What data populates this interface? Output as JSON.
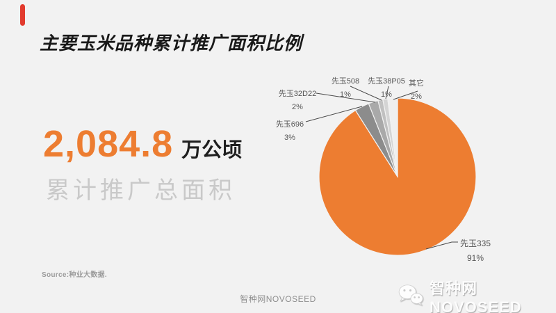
{
  "header": {
    "title": "主要玉米品种累计推广面积比例"
  },
  "stat": {
    "value": "2,084.8",
    "unit": "万公顷",
    "caption": "累计推广总面积"
  },
  "chart_data": {
    "type": "pie",
    "title": "主要玉米品种累计推广面积比例",
    "value_unit": "%",
    "direction": "clockwise",
    "start_angle_deg": 0,
    "legend": "none",
    "label_style": "outside-with-leader-lines",
    "series": [
      {
        "name": "先玉335",
        "value": 91,
        "pct": "91%",
        "color": "#ED7D31"
      },
      {
        "name": "先玉696",
        "value": 3,
        "pct": "3%",
        "color": "#8C8C8C"
      },
      {
        "name": "先玉32D22",
        "value": 2,
        "pct": "2%",
        "color": "#A9A9A9"
      },
      {
        "name": "先玉508",
        "value": 1,
        "pct": "1%",
        "color": "#C0C0C0"
      },
      {
        "name": "先玉38P05",
        "value": 1,
        "pct": "1%",
        "color": "#D4D4D4"
      },
      {
        "name": "其它",
        "value": 2,
        "pct": "2%",
        "color": "#EFEFEF"
      }
    ]
  },
  "footer": {
    "source": "Source:种业大数据.",
    "brand_center": "智种网NOVOSEED",
    "brand_right": "智种网NOVOSEED"
  },
  "colors": {
    "accent_orange": "#ED7D31",
    "accent_red": "#E23B2E",
    "background": "#F2F2F2",
    "title_text": "#1A1A1A",
    "caption_gray": "#C9C9C9",
    "leader_line": "#4A4A4A"
  },
  "icons": {
    "wechat": "wechat-icon"
  }
}
